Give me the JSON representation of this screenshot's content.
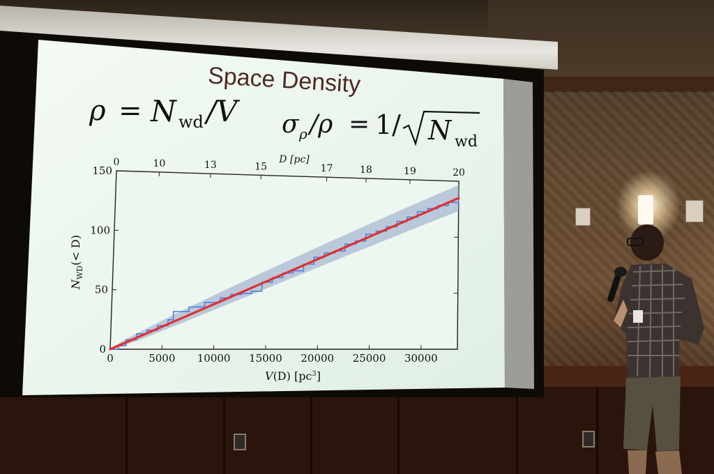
{
  "slide": {
    "title": "Space Density",
    "eq_left": {
      "rho": "ρ",
      "eq": "=",
      "N": "N",
      "sub": "wd",
      "slash_v": "/V"
    },
    "eq_right": {
      "sigma": "σ",
      "sub_rho": "ρ",
      "slash_rho": "/ρ",
      "eq": "=",
      "one": "1/",
      "N": "N",
      "sub": "wd"
    }
  },
  "chart_data": {
    "type": "line",
    "xlabel": "V(D) [pc³]",
    "xlabel_parts": {
      "main": "V",
      "arg": "(D) [pc",
      "sup": "3",
      "close": "]"
    },
    "ylabel": "NWD(< D)",
    "ylabel_parts": {
      "main": "N",
      "sub": "WD",
      "arg": "(< D)"
    },
    "top_label": "D [pc]",
    "xlim": [
      0,
      33510
    ],
    "ylim": [
      0,
      150
    ],
    "xticks": [
      "0",
      "5000",
      "10000",
      "15000",
      "20000",
      "25000",
      "30000"
    ],
    "xtick_values": [
      0,
      5000,
      10000,
      15000,
      20000,
      25000,
      30000
    ],
    "yticks": [
      "0",
      "50",
      "100",
      "150"
    ],
    "ytick_values": [
      0,
      50,
      100,
      150
    ],
    "top_ticks": [
      "0",
      "10",
      "13",
      "15",
      "17",
      "18",
      "19",
      "20"
    ],
    "top_tick_values": [
      0,
      10,
      13,
      15,
      17,
      18,
      19,
      20
    ],
    "series": [
      {
        "kind": "step",
        "color": "#4f7fe0",
        "x": [
          0,
          800,
          1500,
          2500,
          3500,
          4500,
          5500,
          6000,
          7500,
          9000,
          10500,
          11500,
          12500,
          13500,
          14500,
          15500,
          16500,
          17500,
          18500,
          19500,
          20500,
          21500,
          22500,
          23500,
          24500,
          25500,
          26500,
          27500,
          28500,
          29500,
          30500,
          31500,
          32500,
          33510
        ],
        "y": [
          0,
          3,
          8,
          13,
          16,
          20,
          25,
          32,
          36,
          40,
          44,
          47,
          48,
          50,
          58,
          62,
          66,
          68,
          74,
          80,
          84,
          86,
          92,
          95,
          101,
          104,
          108,
          113,
          117,
          122,
          125,
          128,
          131,
          133
        ]
      },
      {
        "kind": "line",
        "color": "#e13030",
        "x": [
          0,
          33510
        ],
        "y": [
          0,
          135
        ]
      }
    ],
    "band": {
      "color": "#8fa4c8",
      "sigma": "sqrt"
    }
  },
  "colors": {
    "slide_bg": "#eef6ef",
    "title": "#4d2a27",
    "fit": "#e13030",
    "data": "#4f7fe0"
  }
}
